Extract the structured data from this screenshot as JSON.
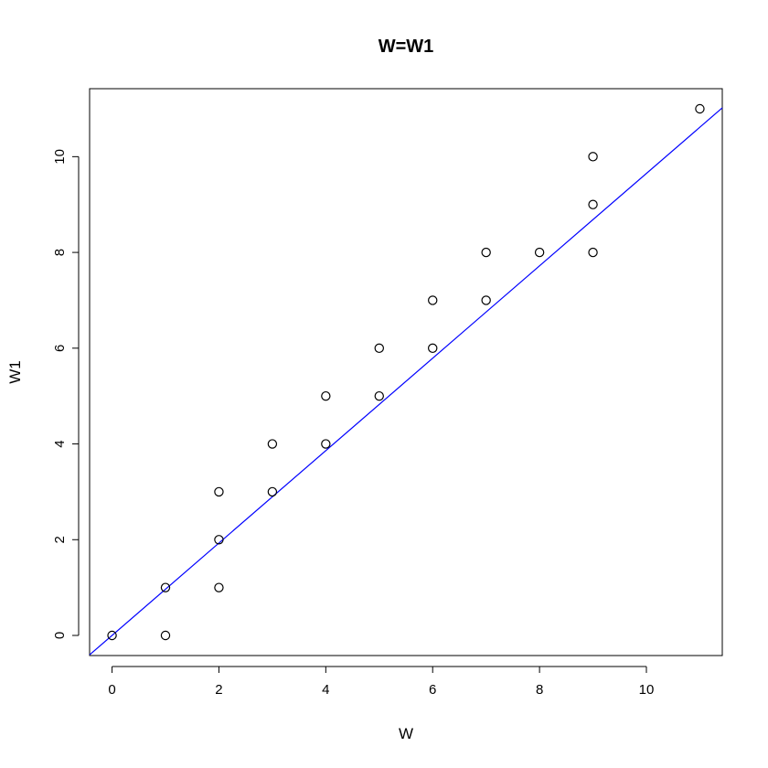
{
  "chart_data": {
    "type": "scatter",
    "title": "W=W1",
    "xlabel": "W",
    "ylabel": "W1",
    "xlim": [
      -0.42,
      11.42
    ],
    "ylim": [
      -0.42,
      11.42
    ],
    "x_ticks": [
      0,
      2,
      4,
      6,
      8,
      10
    ],
    "y_ticks": [
      0,
      2,
      4,
      6,
      8,
      10
    ],
    "grid": false,
    "legend": "none",
    "point_color": "#000000",
    "points": [
      {
        "x": 0,
        "y": 0
      },
      {
        "x": 1,
        "y": 0
      },
      {
        "x": 1,
        "y": 1
      },
      {
        "x": 2,
        "y": 1
      },
      {
        "x": 2,
        "y": 2
      },
      {
        "x": 2,
        "y": 3
      },
      {
        "x": 3,
        "y": 3
      },
      {
        "x": 3,
        "y": 4
      },
      {
        "x": 4,
        "y": 4
      },
      {
        "x": 4,
        "y": 5
      },
      {
        "x": 5,
        "y": 5
      },
      {
        "x": 5,
        "y": 6
      },
      {
        "x": 6,
        "y": 6
      },
      {
        "x": 6,
        "y": 7
      },
      {
        "x": 7,
        "y": 7
      },
      {
        "x": 7,
        "y": 8
      },
      {
        "x": 8,
        "y": 8
      },
      {
        "x": 9,
        "y": 8
      },
      {
        "x": 9,
        "y": 9
      },
      {
        "x": 9,
        "y": 10
      },
      {
        "x": 11,
        "y": 11
      }
    ],
    "reference_line": {
      "type": "line",
      "intercept": 0,
      "slope": 0.965,
      "color": "#0000ff"
    }
  }
}
